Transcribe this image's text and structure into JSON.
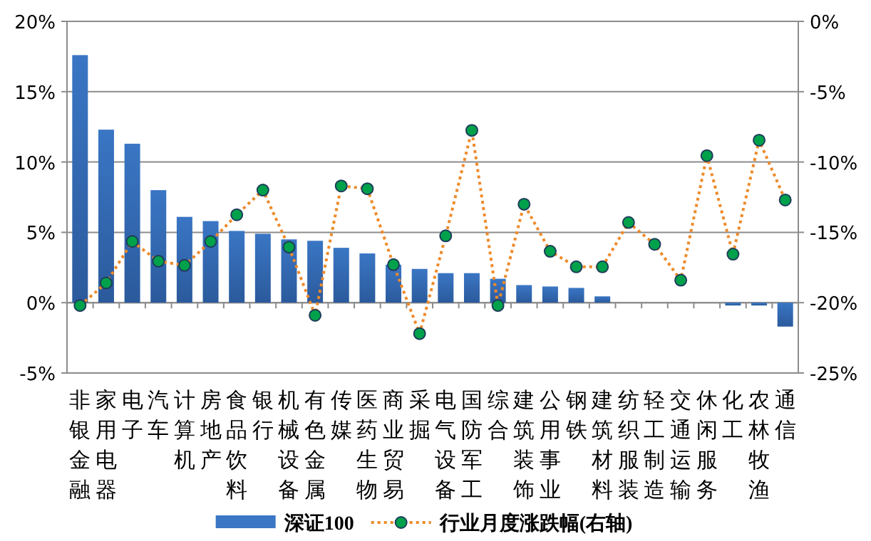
{
  "chart_data": {
    "type": "bar",
    "categories": [
      "非银金融",
      "家用电器",
      "电子",
      "汽车",
      "计算机",
      "房地产",
      "食品饮料",
      "银行",
      "机械设备",
      "有色金属",
      "传媒",
      "医药生物",
      "商业贸易",
      "采掘",
      "电气设备",
      "国防军工",
      "综合",
      "建筑装饰",
      "公用事业",
      "钢铁",
      "建筑材料",
      "纺织服装",
      "轻工制造",
      "交通运输",
      "休闲服务",
      "化工",
      "农林牧渔",
      "通信"
    ],
    "series": [
      {
        "name": "深证100",
        "color": "#3a76c4",
        "values": [
          17.6,
          12.3,
          11.3,
          8.0,
          6.1,
          5.8,
          5.1,
          4.9,
          4.5,
          4.4,
          3.9,
          3.5,
          2.7,
          2.4,
          2.1,
          2.1,
          1.7,
          1.25,
          1.15,
          1.05,
          0.45,
          0,
          0,
          0,
          0,
          -0.2,
          -0.2,
          -1.7
        ]
      },
      {
        "name": "行业月度涨跌幅(右轴)",
        "type": "line",
        "axis": "y2",
        "color": "#ee8a2a",
        "marker": "circle",
        "line_style": "dotted",
        "values": [
          -20.2,
          -18.6,
          -15.65,
          -17.05,
          -17.35,
          -15.65,
          -13.75,
          -12.0,
          -16.05,
          -20.9,
          -11.7,
          -11.9,
          -17.3,
          -22.2,
          -15.25,
          -7.75,
          -20.2,
          -13.0,
          -16.35,
          -17.45,
          -17.45,
          -14.3,
          -15.85,
          -18.4,
          -9.55,
          -16.55,
          -8.45,
          -12.7
        ]
      }
    ],
    "ylim": [
      -5,
      20
    ],
    "yticks": [
      {
        "value": -5,
        "label": "-5%"
      },
      {
        "value": 0,
        "label": "0%"
      },
      {
        "value": 5,
        "label": "5%"
      },
      {
        "value": 10,
        "label": "10%"
      },
      {
        "value": 15,
        "label": "15%"
      },
      {
        "value": 20,
        "label": "20%"
      }
    ],
    "y2lim": [
      -25,
      0
    ],
    "y2ticks": [
      {
        "value": -25,
        "label": "-25%"
      },
      {
        "value": -20,
        "label": "-20%"
      },
      {
        "value": -15,
        "label": "-15%"
      },
      {
        "value": -10,
        "label": "-10%"
      },
      {
        "value": -5,
        "label": "-5%"
      },
      {
        "value": 0,
        "label": "0%"
      }
    ],
    "grid": "y",
    "legend": "bottom"
  }
}
